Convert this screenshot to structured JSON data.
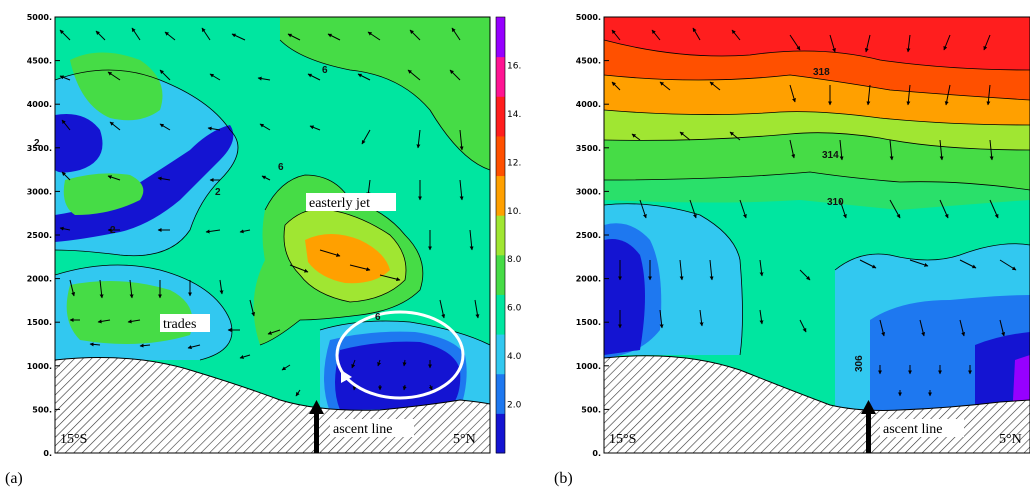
{
  "chart_data": [
    {
      "panel": "(a)",
      "type": "contour",
      "y_ticks": [
        "0.",
        "500.",
        "1000.",
        "1500.",
        "2000.",
        "2500.",
        "3000.",
        "3500.",
        "4000.",
        "4500.",
        "5000."
      ],
      "ylim": [
        0,
        5000
      ],
      "colorbar_ticks": [
        "2.0",
        "4.0",
        "6.0",
        "8.0",
        "10.",
        "12.",
        "14.",
        "16."
      ],
      "colorbar_range": [
        0,
        18
      ],
      "contour_labels": [
        "2",
        "2",
        "2",
        "6",
        "6",
        "6"
      ],
      "annotations": {
        "jet": "easterly jet",
        "trades": "trades",
        "ascent": "ascent line",
        "left_lat": "15°S",
        "right_lat": "5°N"
      },
      "circulation_loop": true
    },
    {
      "panel": "(b)",
      "type": "contour",
      "y_ticks": [
        "0.",
        "500.",
        "1000.",
        "1500.",
        "2000.",
        "2500.",
        "3000.",
        "3500.",
        "4000.",
        "4500.",
        "5000."
      ],
      "ylim": [
        0,
        5000
      ],
      "contour_labels": [
        "318",
        "314",
        "310",
        "306"
      ],
      "annotations": {
        "ascent": "ascent line",
        "left_lat": "15°S",
        "right_lat": "5°N"
      }
    }
  ],
  "colors": {
    "c0": "#1414d2",
    "c1": "#1e78f0",
    "c2": "#32c8f0",
    "c3": "#00e6a0",
    "c4": "#46dc46",
    "c5": "#a0e632",
    "c6": "#ffa000",
    "c7": "#ff5000",
    "c8": "#ff1e1e",
    "c9": "#ff1493",
    "c10": "#9600ff"
  }
}
